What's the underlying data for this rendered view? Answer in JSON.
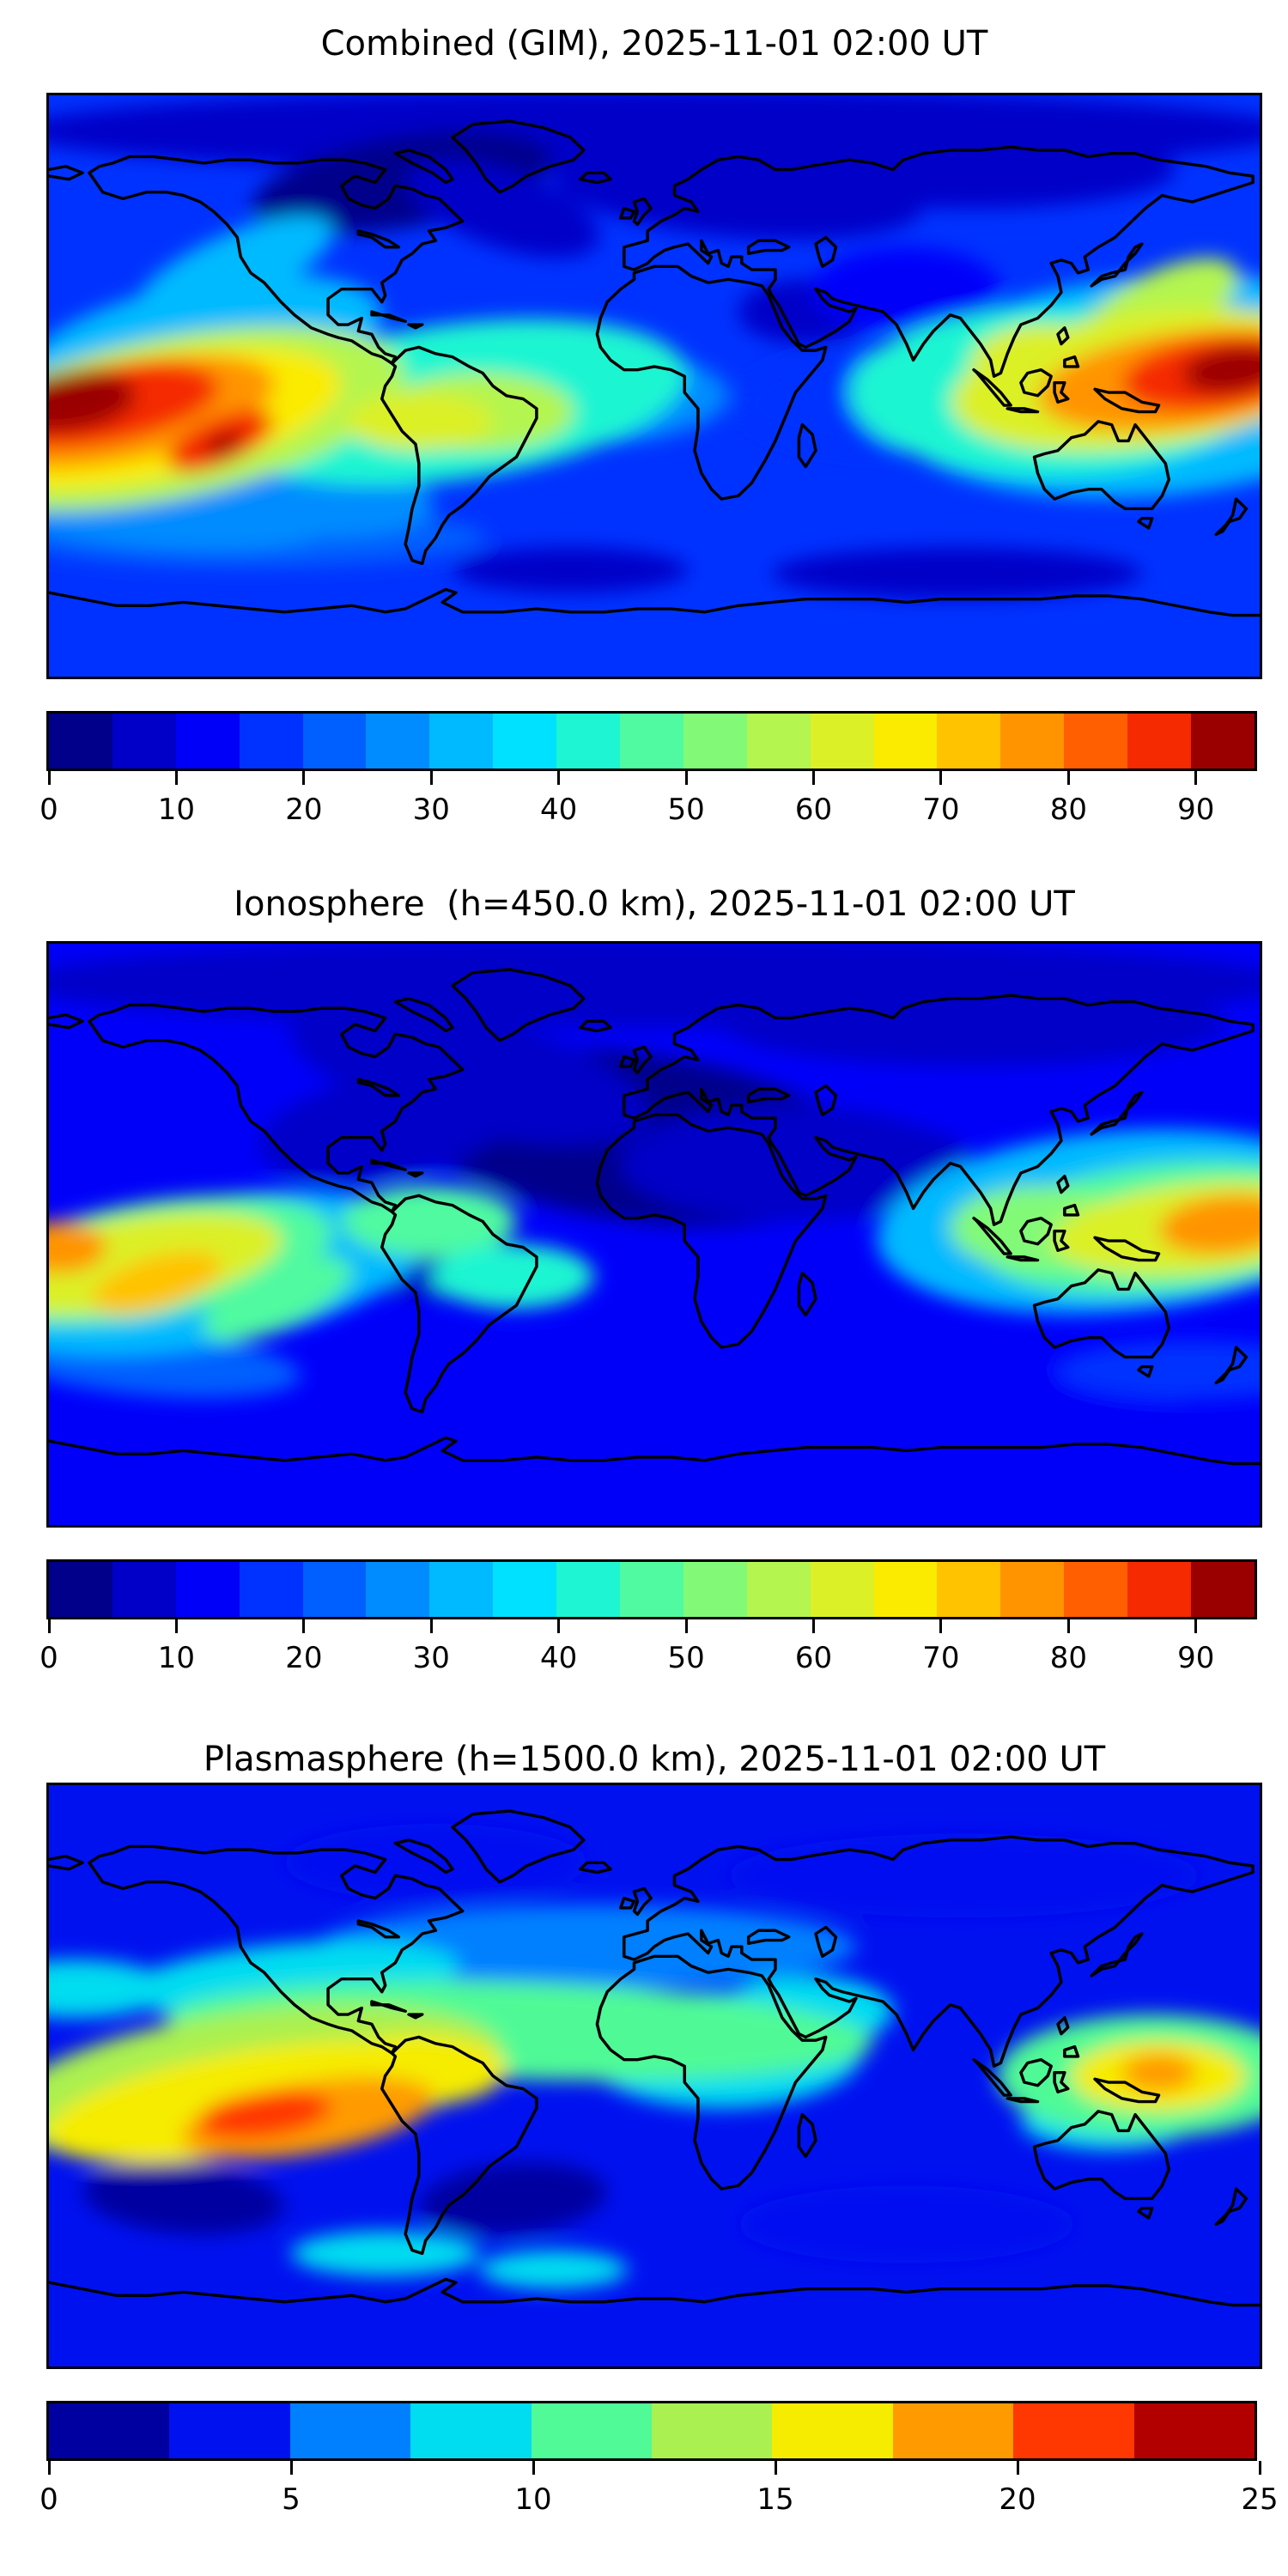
{
  "figure": {
    "background": "#ffffff",
    "coastline_color": "#000000",
    "axes_border_color": "#000000"
  },
  "chart_data": [
    {
      "type": "heatmap",
      "title": "Combined (GIM), 2025-11-01 02:00 UT",
      "projection": "equirectangular",
      "lon_range": [
        -180,
        180
      ],
      "lat_range": [
        -90,
        90
      ],
      "grid": false,
      "colorbar": {
        "orientation": "horizontal",
        "min": 0,
        "max": 95,
        "level_step": 5,
        "ticks": [
          0,
          10,
          20,
          30,
          40,
          50,
          60,
          70,
          80,
          90
        ],
        "colormap": "jet",
        "segment_colors": [
          "#00008b",
          "#0000c8",
          "#0000fa",
          "#0032ff",
          "#005fff",
          "#008cff",
          "#00baff",
          "#00e1ff",
          "#1ef5d2",
          "#50faa0",
          "#82fa78",
          "#b4f550",
          "#dcf028",
          "#faeb00",
          "#ffc300",
          "#ff9400",
          "#ff5f00",
          "#f52a00",
          "#9b0000"
        ]
      },
      "base_value": 16,
      "features": [
        {
          "lon": 0,
          "lat": 79,
          "rx": 190,
          "ry": 13,
          "rot": 0,
          "v": 9
        },
        {
          "lon": -75,
          "lat": 63,
          "rx": 45,
          "ry": 14,
          "rot": -10,
          "v": 4
        },
        {
          "lon": -45,
          "lat": 55,
          "rx": 30,
          "ry": 12,
          "rot": 20,
          "v": 8
        },
        {
          "lon": 25,
          "lat": 60,
          "rx": 55,
          "ry": 14,
          "rot": 5,
          "v": 7
        },
        {
          "lon": 95,
          "lat": 67,
          "rx": 60,
          "ry": 12,
          "rot": 0,
          "v": 8
        },
        {
          "lon": 45,
          "lat": 23,
          "rx": 20,
          "ry": 10,
          "rot": 0,
          "v": 8
        },
        {
          "lon": 75,
          "lat": 30,
          "rx": 28,
          "ry": 13,
          "rot": 0,
          "v": 10
        },
        {
          "lon": 90,
          "lat": -58,
          "rx": 55,
          "ry": 8,
          "rot": 0,
          "v": 9
        },
        {
          "lon": -25,
          "lat": -57,
          "rx": 35,
          "ry": 7,
          "rot": 0,
          "v": 9
        },
        {
          "lon": -120,
          "lat": -47,
          "rx": 70,
          "ry": 9,
          "rot": 0,
          "v": 20
        },
        {
          "lon": 70,
          "lat": -5,
          "rx": 45,
          "ry": 16,
          "rot": 0,
          "v": 18
        },
        {
          "lon": -20,
          "lat": -3,
          "rx": 42,
          "ry": 15,
          "rot": 0,
          "v": 26
        },
        {
          "lon": -150,
          "lat": -38,
          "rx": 55,
          "ry": 12,
          "rot": 5,
          "v": 25
        },
        {
          "lon": -120,
          "lat": -30,
          "rx": 55,
          "ry": 15,
          "rot": 8,
          "v": 28
        },
        {
          "lon": -135,
          "lat": 12,
          "rx": 55,
          "ry": 20,
          "rot": -12,
          "v": 30
        },
        {
          "lon": -125,
          "lat": 36,
          "rx": 32,
          "ry": 11,
          "rot": -25,
          "v": 33
        },
        {
          "lon": 148,
          "lat": 0,
          "rx": 80,
          "ry": 34,
          "rot": -5,
          "v": 30
        },
        {
          "lon": -60,
          "lat": -5,
          "rx": 70,
          "ry": 24,
          "rot": -8,
          "v": 40
        },
        {
          "lon": 118,
          "lat": -2,
          "rx": 60,
          "ry": 26,
          "rot": 0,
          "v": 42
        },
        {
          "lon": -145,
          "lat": -10,
          "rx": 72,
          "ry": 25,
          "rot": -12,
          "v": 55
        },
        {
          "lon": -52,
          "lat": -8,
          "rx": 28,
          "ry": 12,
          "rot": 0,
          "v": 57
        },
        {
          "lon": 150,
          "lat": 24,
          "rx": 26,
          "ry": 11,
          "rot": -28,
          "v": 55
        },
        {
          "lon": 146,
          "lat": 2,
          "rx": 58,
          "ry": 21,
          "rot": -8,
          "v": 60
        },
        {
          "lon": 116,
          "lat": 7,
          "rx": 22,
          "ry": 12,
          "rot": 0,
          "v": 62
        },
        {
          "lon": -70,
          "lat": -11,
          "rx": 22,
          "ry": 9,
          "rot": 0,
          "v": 62
        },
        {
          "lon": -150,
          "lat": -10,
          "rx": 58,
          "ry": 19,
          "rot": -12,
          "v": 66
        },
        {
          "lon": 158,
          "lat": 2,
          "rx": 44,
          "ry": 15,
          "rot": -8,
          "v": 76
        },
        {
          "lon": -158,
          "lat": -8,
          "rx": 46,
          "ry": 15,
          "rot": -12,
          "v": 76
        },
        {
          "lon": -165,
          "lat": -6,
          "rx": 36,
          "ry": 12,
          "rot": -10,
          "v": 86
        },
        {
          "lon": 167,
          "lat": 4,
          "rx": 28,
          "ry": 11,
          "rot": -8,
          "v": 87
        },
        {
          "lon": -174,
          "lat": -5,
          "rx": 20,
          "ry": 9,
          "rot": -8,
          "v": 92
        },
        {
          "lon": 172,
          "lat": 5,
          "rx": 15,
          "ry": 7,
          "rot": -8,
          "v": 92
        },
        {
          "lon": -129,
          "lat": -17,
          "rx": 17,
          "ry": 7,
          "rot": -25,
          "v": 88
        },
        {
          "lon": -128,
          "lat": -18,
          "rx": 6,
          "ry": 3,
          "rot": -25,
          "v": 93
        }
      ]
    },
    {
      "type": "heatmap",
      "title": "Ionosphere  (h=450.0 km), 2025-11-01 02:00 UT",
      "projection": "equirectangular",
      "lon_range": [
        -180,
        180
      ],
      "lat_range": [
        -90,
        90
      ],
      "grid": false,
      "colorbar": {
        "orientation": "horizontal",
        "min": 0,
        "max": 95,
        "level_step": 5,
        "ticks": [
          0,
          10,
          20,
          30,
          40,
          50,
          60,
          70,
          80,
          90
        ],
        "colormap": "jet",
        "segment_colors": [
          "#00008b",
          "#0000c8",
          "#0000fa",
          "#0032ff",
          "#005fff",
          "#008cff",
          "#00baff",
          "#00e1ff",
          "#1ef5d2",
          "#50faa0",
          "#82fa78",
          "#b4f550",
          "#dcf028",
          "#faeb00",
          "#ffc300",
          "#ff9400",
          "#ff5f00",
          "#f52a00",
          "#9b0000"
        ]
      },
      "base_value": 13,
      "features": [
        {
          "lon": 0,
          "lat": 78,
          "rx": 190,
          "ry": 14,
          "rot": 0,
          "v": 8
        },
        {
          "lon": -5,
          "lat": 30,
          "rx": 70,
          "ry": 26,
          "rot": 8,
          "v": 4
        },
        {
          "lon": 40,
          "lat": 22,
          "rx": 50,
          "ry": 18,
          "rot": 0,
          "v": 5
        },
        {
          "lon": -80,
          "lat": 33,
          "rx": 38,
          "ry": 16,
          "rot": -10,
          "v": 5
        },
        {
          "lon": -55,
          "lat": 50,
          "rx": 55,
          "ry": 18,
          "rot": 15,
          "v": 7
        },
        {
          "lon": 72,
          "lat": 22,
          "rx": 22,
          "ry": 12,
          "rot": 0,
          "v": 6
        },
        {
          "lon": 95,
          "lat": 65,
          "rx": 75,
          "ry": 13,
          "rot": 0,
          "v": 9
        },
        {
          "lon": -65,
          "lat": -10,
          "rx": 22,
          "ry": 10,
          "rot": 0,
          "v": 9
        },
        {
          "lon": -30,
          "lat": -45,
          "rx": 55,
          "ry": 11,
          "rot": 0,
          "v": 10
        },
        {
          "lon": 95,
          "lat": -50,
          "rx": 65,
          "ry": 11,
          "rot": 0,
          "v": 10
        },
        {
          "lon": -150,
          "lat": -40,
          "rx": 45,
          "ry": 10,
          "rot": 5,
          "v": 20
        },
        {
          "lon": 160,
          "lat": -42,
          "rx": 40,
          "ry": 9,
          "rot": 0,
          "v": 18
        },
        {
          "lon": -135,
          "lat": -12,
          "rx": 68,
          "ry": 23,
          "rot": -10,
          "v": 30
        },
        {
          "lon": 138,
          "lat": 4,
          "rx": 72,
          "ry": 28,
          "rot": -5,
          "v": 30
        },
        {
          "lon": -67,
          "lat": 4,
          "rx": 26,
          "ry": 11,
          "rot": 0,
          "v": 45
        },
        {
          "lon": -42,
          "lat": -13,
          "rx": 24,
          "ry": 10,
          "rot": 0,
          "v": 42
        },
        {
          "lon": -150,
          "lat": -8,
          "rx": 55,
          "ry": 18,
          "rot": -10,
          "v": 46
        },
        {
          "lon": -112,
          "lat": -20,
          "rx": 24,
          "ry": 9,
          "rot": -25,
          "v": 46
        },
        {
          "lon": 152,
          "lat": 2,
          "rx": 56,
          "ry": 20,
          "rot": -6,
          "v": 46
        },
        {
          "lon": 114,
          "lat": 2,
          "rx": 26,
          "ry": 13,
          "rot": 0,
          "v": 50
        },
        {
          "lon": -156,
          "lat": -9,
          "rx": 46,
          "ry": 14,
          "rot": -10,
          "v": 62
        },
        {
          "lon": 162,
          "lat": 2,
          "rx": 44,
          "ry": 14,
          "rot": -6,
          "v": 63
        },
        {
          "lon": -148,
          "lat": -15,
          "rx": 20,
          "ry": 8,
          "rot": -18,
          "v": 73
        },
        {
          "lon": -177,
          "lat": -4,
          "rx": 14,
          "ry": 8,
          "rot": 0,
          "v": 78
        },
        {
          "lon": 170,
          "lat": 3,
          "rx": 20,
          "ry": 9,
          "rot": -6,
          "v": 76
        }
      ]
    },
    {
      "type": "heatmap",
      "title": "Plasmasphere (h=1500.0 km), 2025-11-01 02:00 UT",
      "projection": "equirectangular",
      "lon_range": [
        -180,
        180
      ],
      "lat_range": [
        -90,
        90
      ],
      "grid": false,
      "colorbar": {
        "orientation": "horizontal",
        "min": 0,
        "max": 25,
        "level_step": 2.5,
        "ticks": [
          0,
          5,
          10,
          15,
          20,
          25
        ],
        "colormap": "jet",
        "segment_colors": [
          "#0000a0",
          "#0011f0",
          "#0080ff",
          "#00dcf0",
          "#50fa96",
          "#aaf050",
          "#f5ec00",
          "#ff9b00",
          "#ff3700",
          "#b20000"
        ]
      },
      "base_value": 4.3,
      "features": [
        {
          "lon": -20,
          "lat": 40,
          "rx": 80,
          "ry": 13,
          "rot": 0,
          "v": 6
        },
        {
          "lon": -140,
          "lat": -38,
          "rx": 30,
          "ry": 11,
          "rot": 5,
          "v": 1.5
        },
        {
          "lon": -42,
          "lat": -38,
          "rx": 28,
          "ry": 11,
          "rot": -5,
          "v": 1.5
        },
        {
          "lon": 92,
          "lat": 62,
          "rx": 70,
          "ry": 13,
          "rot": 0,
          "v": 2.5
        },
        {
          "lon": 75,
          "lat": -46,
          "rx": 50,
          "ry": 12,
          "rot": 0,
          "v": 2.5
        },
        {
          "lon": -65,
          "lat": 66,
          "rx": 45,
          "ry": 12,
          "rot": 0,
          "v": 3
        },
        {
          "lon": -108,
          "lat": 30,
          "rx": 50,
          "ry": 11,
          "rot": -5,
          "v": 8
        },
        {
          "lon": -172,
          "lat": 27,
          "rx": 28,
          "ry": 9,
          "rot": 0,
          "v": 8
        },
        {
          "lon": 135,
          "lat": -14,
          "rx": 26,
          "ry": 9,
          "rot": 0,
          "v": 8
        },
        {
          "lon": -80,
          "lat": -55,
          "rx": 28,
          "ry": 7,
          "rot": 0,
          "v": 9
        },
        {
          "lon": -30,
          "lat": -60,
          "rx": 22,
          "ry": 6,
          "rot": 0,
          "v": 9
        },
        {
          "lon": 20,
          "lat": 8,
          "rx": 42,
          "ry": 18,
          "rot": 0,
          "v": 9
        },
        {
          "lon": 45,
          "lat": 20,
          "rx": 26,
          "ry": 11,
          "rot": 0,
          "v": 9
        },
        {
          "lon": -40,
          "lat": 14,
          "rx": 105,
          "ry": 15,
          "rot": 2,
          "v": 11
        },
        {
          "lon": 148,
          "lat": 0,
          "rx": 46,
          "ry": 19,
          "rot": 0,
          "v": 11
        },
        {
          "lon": -120,
          "lat": -2,
          "rx": 75,
          "ry": 22,
          "rot": -8,
          "v": 13
        },
        {
          "lon": -120,
          "lat": -8,
          "rx": 62,
          "ry": 16,
          "rot": -10,
          "v": 16
        },
        {
          "lon": -70,
          "lat": 2,
          "rx": 26,
          "ry": 11,
          "rot": 0,
          "v": 17
        },
        {
          "lon": 150,
          "lat": 0,
          "rx": 26,
          "ry": 11,
          "rot": 0,
          "v": 16.5
        },
        {
          "lon": -103,
          "lat": -13,
          "rx": 38,
          "ry": 11,
          "rot": -10,
          "v": 19
        },
        {
          "lon": -116,
          "lat": -12,
          "rx": 20,
          "ry": 7,
          "rot": -8,
          "v": 22
        },
        {
          "lon": 150,
          "lat": 1,
          "rx": 11,
          "ry": 6,
          "rot": 0,
          "v": 19.5
        }
      ]
    }
  ]
}
